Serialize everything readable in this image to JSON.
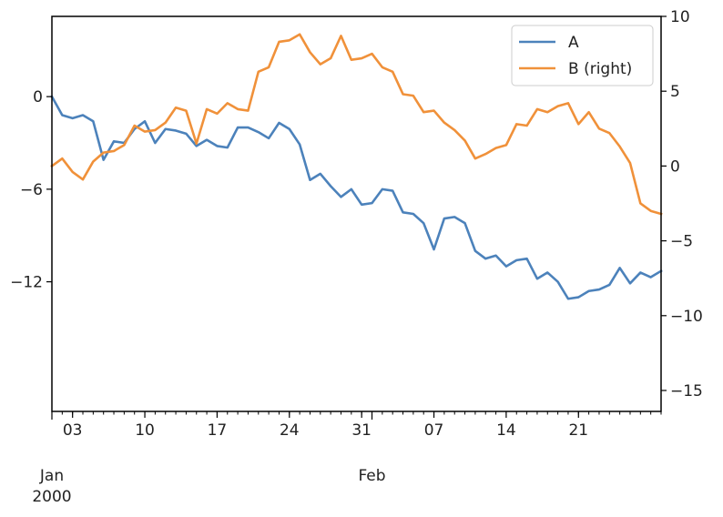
{
  "chart_data": {
    "type": "line",
    "title": "",
    "xlabel": "",
    "ylabel": "",
    "ylabel_right": "",
    "x": [
      "2000-01-01",
      "2000-01-02",
      "2000-01-03",
      "2000-01-04",
      "2000-01-05",
      "2000-01-06",
      "2000-01-07",
      "2000-01-08",
      "2000-01-09",
      "2000-01-10",
      "2000-01-11",
      "2000-01-12",
      "2000-01-13",
      "2000-01-14",
      "2000-01-15",
      "2000-01-16",
      "2000-01-17",
      "2000-01-18",
      "2000-01-19",
      "2000-01-20",
      "2000-01-21",
      "2000-01-22",
      "2000-01-23",
      "2000-01-24",
      "2000-01-25",
      "2000-01-26",
      "2000-01-27",
      "2000-01-28",
      "2000-01-29",
      "2000-01-30",
      "2000-01-31",
      "2000-02-01",
      "2000-02-02",
      "2000-02-03",
      "2000-02-04",
      "2000-02-05",
      "2000-02-06",
      "2000-02-07",
      "2000-02-08",
      "2000-02-09",
      "2000-02-10",
      "2000-02-11",
      "2000-02-12",
      "2000-02-13",
      "2000-02-14",
      "2000-02-15",
      "2000-02-16",
      "2000-02-17",
      "2000-02-18",
      "2000-02-19",
      "2000-02-20",
      "2000-02-21",
      "2000-02-22",
      "2000-02-23",
      "2000-02-24",
      "2000-02-25",
      "2000-02-26",
      "2000-02-27",
      "2000-02-28",
      "2000-02-29"
    ],
    "series": [
      {
        "name": "A",
        "axis": "left",
        "color": "#4c82bb",
        "values": [
          0.0,
          -1.2,
          -1.4,
          -1.2,
          -1.6,
          -4.1,
          -2.9,
          -3.0,
          -2.1,
          -1.6,
          -3.0,
          -2.1,
          -2.2,
          -2.4,
          -3.2,
          -2.8,
          -3.2,
          -3.3,
          -2.0,
          -2.0,
          -2.3,
          -2.7,
          -1.7,
          -2.1,
          -3.1,
          -5.4,
          -5.0,
          -5.8,
          -6.5,
          -6.0,
          -7.0,
          -6.9,
          -6.0,
          -6.1,
          -7.5,
          -7.6,
          -8.2,
          -9.9,
          -7.9,
          -7.8,
          -8.2,
          -10.0,
          -10.5,
          -10.3,
          -11.0,
          -10.6,
          -10.5,
          -11.8,
          -11.4,
          -12.0,
          -13.1,
          -13.0,
          -12.6,
          -12.5,
          -12.2,
          -11.1,
          -12.1,
          -11.4,
          -11.7,
          -11.3
        ]
      },
      {
        "name": "B (right)",
        "axis": "right",
        "color": "#f0913a",
        "values": [
          0.0,
          0.5,
          -0.4,
          -0.9,
          0.3,
          0.9,
          1.0,
          1.4,
          2.7,
          2.3,
          2.4,
          2.9,
          3.9,
          3.7,
          1.5,
          3.8,
          3.5,
          4.2,
          3.8,
          3.7,
          6.3,
          6.6,
          8.3,
          8.4,
          8.8,
          7.6,
          6.8,
          7.2,
          8.7,
          7.1,
          7.2,
          7.5,
          6.6,
          6.3,
          4.8,
          4.7,
          3.6,
          3.7,
          2.9,
          2.4,
          1.7,
          0.5,
          0.8,
          1.2,
          1.4,
          2.8,
          2.7,
          3.8,
          3.6,
          4.0,
          4.2,
          2.8,
          3.6,
          2.5,
          2.2,
          1.3,
          0.2,
          -2.5,
          -3.0,
          -3.2
        ]
      }
    ],
    "ylim_left": [
      -20.4,
      5.2
    ],
    "ylim_right": [
      -16.4,
      10.0
    ],
    "yticks_left": [
      {
        "v": 0,
        "label": "0"
      },
      {
        "v": -6,
        "label": "−6"
      },
      {
        "v": -12,
        "label": "−12"
      }
    ],
    "yticks_right": [
      {
        "v": 10,
        "label": "10"
      },
      {
        "v": 5,
        "label": "5"
      },
      {
        "v": 0,
        "label": "0"
      },
      {
        "v": -5,
        "label": "−5"
      },
      {
        "v": -10,
        "label": "−10"
      },
      {
        "v": -15,
        "label": "−15"
      }
    ],
    "xticks_major": [
      {
        "date": "2000-01-03",
        "label": "03"
      },
      {
        "date": "2000-01-10",
        "label": "10"
      },
      {
        "date": "2000-01-17",
        "label": "17"
      },
      {
        "date": "2000-01-24",
        "label": "24"
      },
      {
        "date": "2000-01-31",
        "label": "31"
      },
      {
        "date": "2000-02-07",
        "label": "07"
      },
      {
        "date": "2000-02-14",
        "label": "14"
      },
      {
        "date": "2000-02-21",
        "label": "21"
      }
    ],
    "xticks_period": [
      {
        "date": "2000-01-01",
        "lines": [
          "Jan",
          "2000"
        ]
      },
      {
        "date": "2000-02-01",
        "lines": [
          "Feb"
        ]
      }
    ],
    "legend": {
      "placement": "top-right",
      "entries": [
        "A",
        "B (right)"
      ]
    },
    "grid": false
  }
}
